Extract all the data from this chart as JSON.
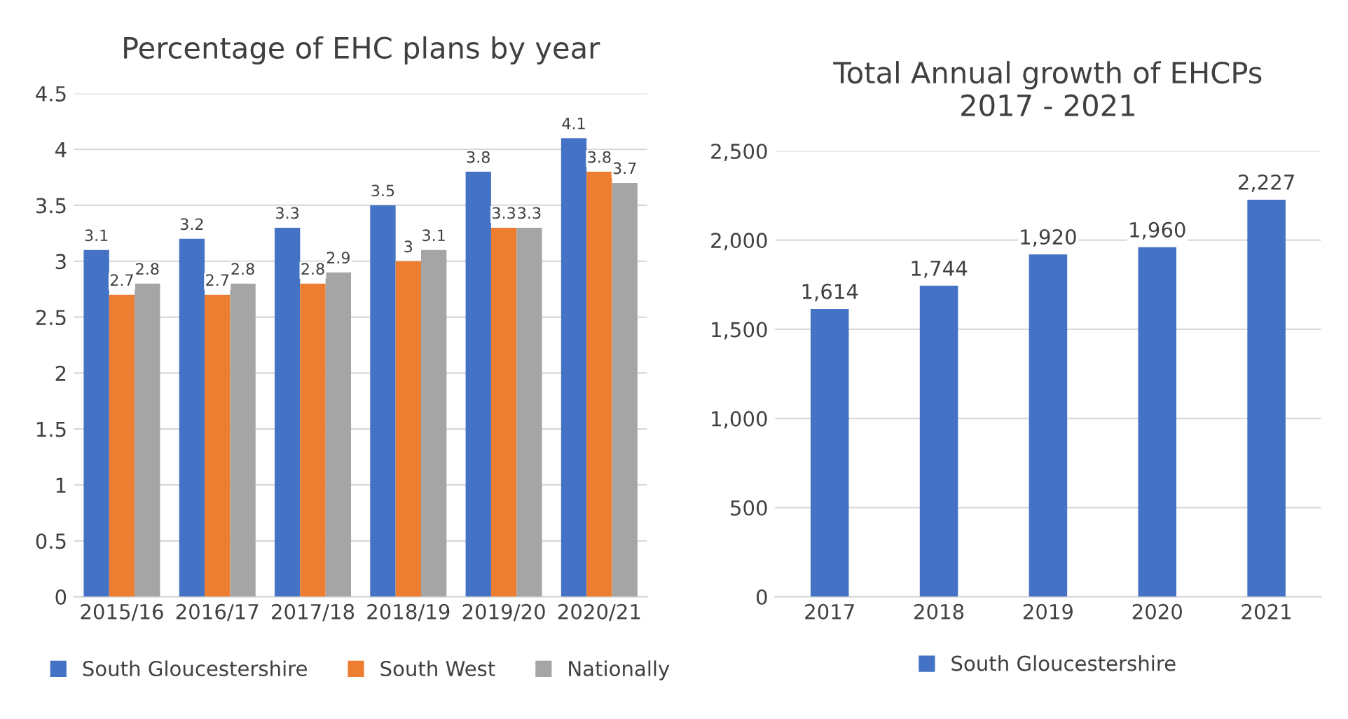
{
  "chart_data": [
    {
      "type": "bar",
      "title": "Percentage of EHC plans by year",
      "categories": [
        "2015/16",
        "2016/17",
        "2017/18",
        "2018/19",
        "2019/20",
        "2020/21"
      ],
      "series": [
        {
          "name": "South Gloucestershire",
          "color": "#4472c4",
          "values": [
            3.1,
            3.2,
            3.3,
            3.5,
            3.8,
            4.1
          ]
        },
        {
          "name": "South West",
          "color": "#ed7d31",
          "values": [
            2.7,
            2.7,
            2.8,
            3,
            3.3,
            3.8
          ]
        },
        {
          "name": "Nationally",
          "color": "#a5a5a5",
          "values": [
            2.8,
            2.8,
            2.9,
            3.1,
            3.3,
            3.7
          ]
        }
      ],
      "ylim": [
        0,
        4.5
      ],
      "yticks": [
        0,
        0.5,
        1,
        1.5,
        2,
        2.5,
        3,
        3.5,
        4,
        4.5
      ],
      "grid": "y",
      "legend": "bottom",
      "data_labels": true
    },
    {
      "type": "bar",
      "title": "Total Annual growth of EHCPs\n2017 - 2021",
      "categories": [
        "2017",
        "2018",
        "2019",
        "2020",
        "2021"
      ],
      "series": [
        {
          "name": "South Gloucestershire",
          "color": "#4472c4",
          "values": [
            1614,
            1744,
            1920,
            1960,
            2227
          ],
          "value_labels": [
            "1,614",
            "1,744",
            "1,920",
            "1,960",
            "2,227"
          ]
        }
      ],
      "ylim": [
        0,
        2500
      ],
      "yticks": [
        0,
        {
          "value": 500,
          "label": "500"
        },
        {
          "value": 1000,
          "label": "1,000"
        },
        {
          "value": 1500,
          "label": "1,500"
        },
        {
          "value": 2000,
          "label": "2,000"
        },
        {
          "value": 2500,
          "label": "2,500"
        }
      ],
      "grid": "y",
      "legend": "bottom"
    }
  ]
}
